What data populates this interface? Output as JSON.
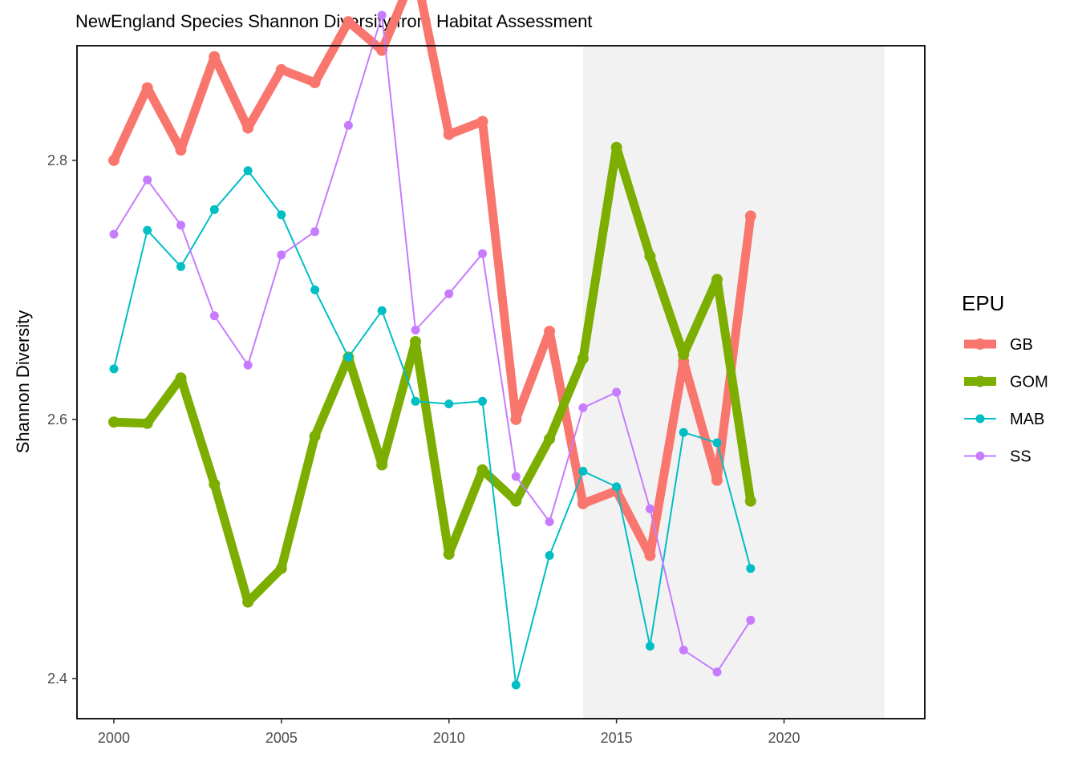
{
  "chart_data": {
    "type": "line",
    "title": "NewEngland Species Shannon Diversity from Habitat Assessment",
    "xlabel": "",
    "ylabel": "Shannon Diversity",
    "xlim": [
      1998.9,
      2024.2
    ],
    "ylim": [
      2.369,
      2.8885
    ],
    "x_ticks": [
      2000,
      2005,
      2010,
      2015,
      2020
    ],
    "x_tick_labels": [
      "2000",
      "2005",
      "2010",
      "2015",
      "2020"
    ],
    "y_ticks": [
      2.4,
      2.6,
      2.8
    ],
    "y_tick_labels": [
      "2.4",
      "2.6",
      "2.8"
    ],
    "grid": false,
    "shaded_region": {
      "x": [
        2014,
        2023
      ],
      "color": "#f2f2f2"
    },
    "legend": {
      "title": "EPU",
      "position": "right"
    },
    "x": [
      2000,
      2001,
      2002,
      2003,
      2004,
      2005,
      2006,
      2007,
      2008,
      2009,
      2010,
      2011,
      2012,
      2013,
      2014,
      2015,
      2016,
      2017,
      2018,
      2019
    ],
    "series": [
      {
        "name": "GB",
        "color": "#F8766D",
        "thick": true,
        "values": [
          2.8,
          2.856,
          2.808,
          2.88,
          2.825,
          2.87,
          2.86,
          2.907,
          2.885,
          2.947,
          2.82,
          2.83,
          2.6,
          2.668,
          2.535,
          2.545,
          2.495,
          2.645,
          2.553,
          2.757
        ]
      },
      {
        "name": "GOM",
        "color": "#7CAE00",
        "thick": true,
        "values": [
          2.598,
          2.597,
          2.632,
          2.55,
          2.459,
          2.485,
          2.587,
          2.648,
          2.565,
          2.66,
          2.496,
          2.561,
          2.537,
          2.585,
          2.647,
          2.81,
          2.726,
          2.65,
          2.708,
          2.537
        ]
      },
      {
        "name": "MAB",
        "color": "#00BFC4",
        "thick": false,
        "values": [
          2.639,
          2.746,
          2.718,
          2.762,
          2.792,
          2.758,
          2.7,
          2.648,
          2.684,
          2.614,
          2.612,
          2.614,
          2.395,
          2.495,
          2.56,
          2.548,
          2.425,
          2.59,
          2.582,
          2.485
        ]
      },
      {
        "name": "SS",
        "color": "#C77CFF",
        "thick": false,
        "values": [
          2.743,
          2.785,
          2.75,
          2.68,
          2.642,
          2.727,
          2.745,
          2.827,
          2.912,
          2.669,
          2.697,
          2.728,
          2.556,
          2.521,
          2.609,
          2.621,
          2.531,
          2.422,
          2.405,
          2.445
        ]
      }
    ]
  }
}
